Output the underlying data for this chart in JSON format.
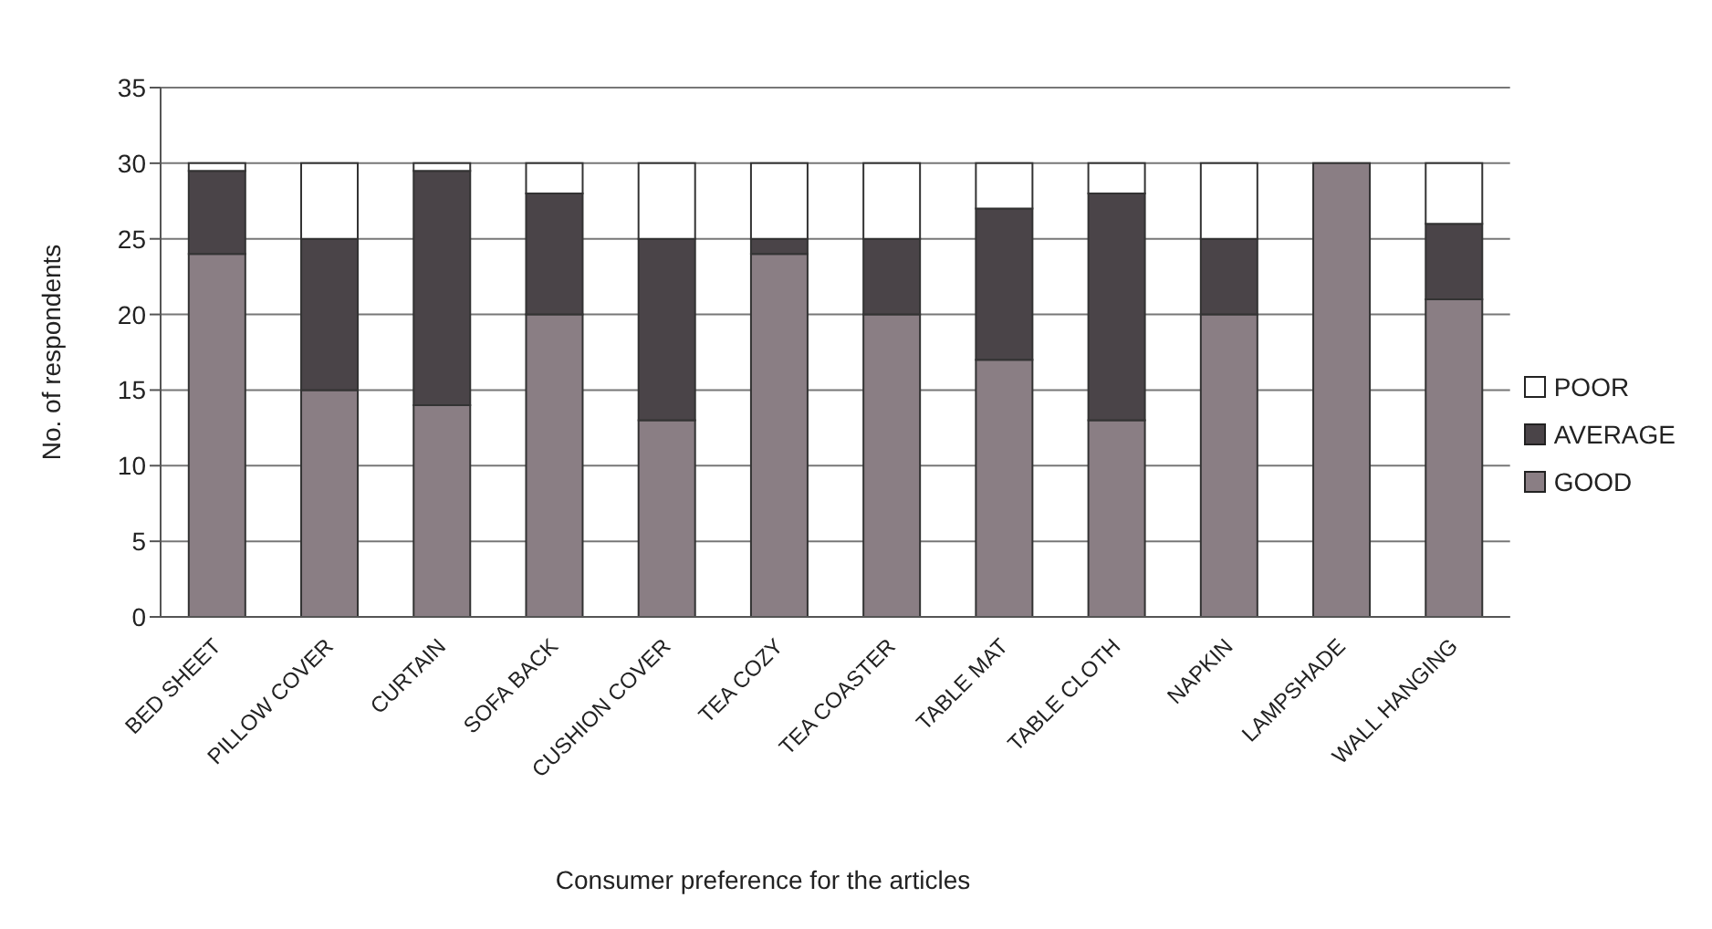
{
  "chart_data": {
    "type": "bar",
    "stacked": true,
    "xlabel": "Consumer preference for the articles",
    "ylabel": "No. of respondents",
    "categories": [
      "BED SHEET",
      "PILLOW COVER",
      "CURTAIN",
      "SOFA BACK",
      "CUSHION COVER",
      "TEA COZY",
      "TEA COASTER",
      "TABLE MAT",
      "TABLE CLOTH",
      "NAPKIN",
      "LAMPSHADE",
      "WALL HANGING"
    ],
    "series": [
      {
        "name": "GOOD",
        "color": "#8a7e84",
        "values": [
          24,
          15,
          14,
          20,
          13,
          24,
          20,
          17,
          13,
          20,
          30,
          21
        ]
      },
      {
        "name": "AVERAGE",
        "color": "#4a4448",
        "values": [
          5.5,
          10,
          15.5,
          8,
          12,
          1,
          5,
          10,
          15,
          5,
          0,
          5
        ]
      },
      {
        "name": "POOR",
        "color": "#ffffff",
        "values": [
          0.5,
          5,
          0.5,
          2,
          5,
          5,
          5,
          3,
          2,
          5,
          0,
          4
        ]
      }
    ],
    "ylim": [
      0,
      35
    ],
    "yticks": [
      0,
      5,
      10,
      15,
      20,
      25,
      30,
      35
    ],
    "grid": "y",
    "legend": "right"
  }
}
